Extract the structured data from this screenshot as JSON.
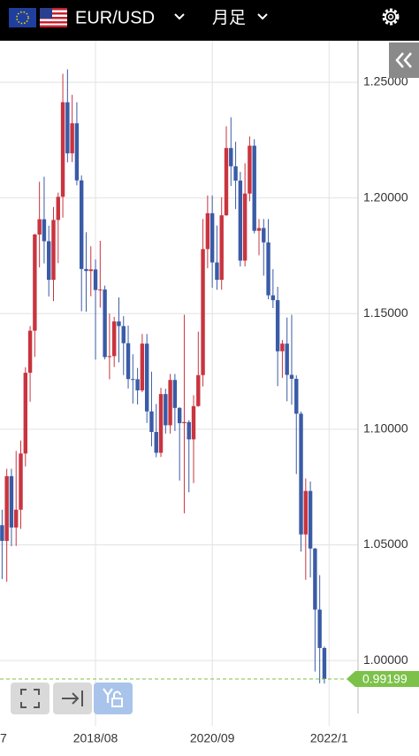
{
  "header": {
    "pair": "EUR/USD",
    "timeframe": "月足"
  },
  "chart_data": {
    "type": "candlestick",
    "open": [
      1.0585,
      1.0517,
      1.0797,
      1.0575,
      1.0652,
      1.0895,
      1.1244,
      1.1426,
      1.1842,
      1.1908,
      1.1813,
      1.1646,
      1.1905,
      1.2005,
      1.2414,
      1.2193,
      1.2323,
      1.2076,
      1.1693,
      1.1684,
      1.1691,
      1.1602,
      1.1604,
      1.1312,
      1.1316,
      1.1466,
      1.1446,
      1.1372,
      1.1217,
      1.1216,
      1.1168,
      1.137,
      1.1077,
      1.0988,
      1.0898,
      1.1152,
      1.1017,
      1.1213,
      1.1092,
      1.1026,
      1.1031,
      1.0956,
      1.11,
      1.1234,
      1.1779,
      1.1934,
      1.1721,
      1.1646,
      1.1925,
      1.2216,
      1.2137,
      1.2075,
      1.1729,
      1.2019,
      1.2226,
      1.1858,
      1.187,
      1.1808,
      1.1579,
      1.1558,
      1.1337,
      1.137,
      1.1235,
      1.1218,
      1.1067,
      1.0545,
      1.0733,
      1.0484,
      1.022,
      1.0054
    ],
    "high": [
      1.0652,
      1.0829,
      1.0829,
      1.0906,
      1.0951,
      1.1268,
      1.1446,
      1.1845,
      1.207,
      1.2092,
      1.188,
      1.1961,
      1.2023,
      1.2537,
      1.2556,
      1.2446,
      1.2414,
      1.2097,
      1.1852,
      1.1791,
      1.1734,
      1.1815,
      1.1621,
      1.15,
      1.1486,
      1.157,
      1.1489,
      1.1448,
      1.1324,
      1.1265,
      1.1412,
      1.1412,
      1.1249,
      1.1109,
      1.1179,
      1.1175,
      1.1239,
      1.1239,
      1.1096,
      1.1495,
      1.1039,
      1.1147,
      1.1422,
      1.1909,
      1.2011,
      1.2011,
      1.1881,
      1.2003,
      1.231,
      1.2349,
      1.2243,
      1.2113,
      1.215,
      1.2266,
      1.2254,
      1.1909,
      1.1909,
      1.1909,
      1.1692,
      1.1616,
      1.1386,
      1.1483,
      1.1495,
      1.1233,
      1.1076,
      1.0787,
      1.0774,
      1.0486,
      1.0369,
      1.006
    ],
    "low": [
      1.0352,
      1.034,
      1.0494,
      1.0495,
      1.0569,
      1.0839,
      1.1119,
      1.1313,
      1.17,
      1.1717,
      1.1574,
      1.1554,
      1.1718,
      1.1915,
      1.2154,
      1.2155,
      1.2055,
      1.151,
      1.1508,
      1.1575,
      1.1301,
      1.1526,
      1.1302,
      1.1216,
      1.1269,
      1.1289,
      1.1234,
      1.1176,
      1.1111,
      1.1107,
      1.116,
      1.1027,
      1.0926,
      1.0879,
      1.088,
      1.0981,
      1.0981,
      1.0992,
      1.0778,
      1.0636,
      1.0727,
      1.0767,
      1.1097,
      1.1185,
      1.1696,
      1.1612,
      1.1603,
      1.1603,
      1.1923,
      1.2052,
      1.1952,
      1.1704,
      1.1704,
      1.1986,
      1.1847,
      1.1752,
      1.1664,
      1.1562,
      1.1524,
      1.1186,
      1.1222,
      1.1121,
      1.1106,
      1.0806,
      1.0471,
      1.0349,
      1.0359,
      0.9952,
      0.9901,
      0.99
    ],
    "close": [
      1.0517,
      1.0797,
      1.0575,
      1.0652,
      1.0895,
      1.1244,
      1.1426,
      1.1842,
      1.1908,
      1.1813,
      1.1646,
      1.1905,
      1.2005,
      1.2414,
      1.2193,
      1.2323,
      1.2076,
      1.1693,
      1.1684,
      1.1691,
      1.1602,
      1.1604,
      1.1312,
      1.1316,
      1.1466,
      1.1446,
      1.1372,
      1.1217,
      1.1216,
      1.1168,
      1.137,
      1.1077,
      1.0988,
      1.0898,
      1.1152,
      1.1017,
      1.1213,
      1.1092,
      1.1026,
      1.1031,
      1.0956,
      1.11,
      1.1234,
      1.1779,
      1.1934,
      1.1721,
      1.1646,
      1.1925,
      1.2216,
      1.2137,
      1.2075,
      1.1729,
      1.2019,
      1.2226,
      1.1858,
      1.187,
      1.1808,
      1.1579,
      1.1558,
      1.1337,
      1.137,
      1.1235,
      1.1218,
      1.1067,
      1.0545,
      1.0733,
      1.0484,
      1.022,
      1.0054,
      0.99199
    ],
    "up_color": "#c9343f",
    "down_color": "#3a5ba6",
    "last_price": 0.99199,
    "last_price_color": "#7cc24a",
    "ylim": [
      0.9717,
      1.268
    ],
    "yticks": [
      {
        "value": 1.0,
        "label": "1.00000"
      },
      {
        "value": 1.05,
        "label": "1.05000"
      },
      {
        "value": 1.1,
        "label": "1.10000"
      },
      {
        "value": 1.15,
        "label": "1.15000"
      },
      {
        "value": 1.2,
        "label": "1.20000"
      },
      {
        "value": 1.25,
        "label": "1.25000"
      }
    ],
    "xlim": [
      -0.45,
      76.2
    ],
    "xticks": [
      {
        "value": -5,
        "label": "7"
      },
      {
        "value": 20,
        "label": "2018/08"
      },
      {
        "value": 45,
        "label": "2020/09"
      },
      {
        "value": 70,
        "label": "2022/1"
      }
    ],
    "grid": true
  }
}
